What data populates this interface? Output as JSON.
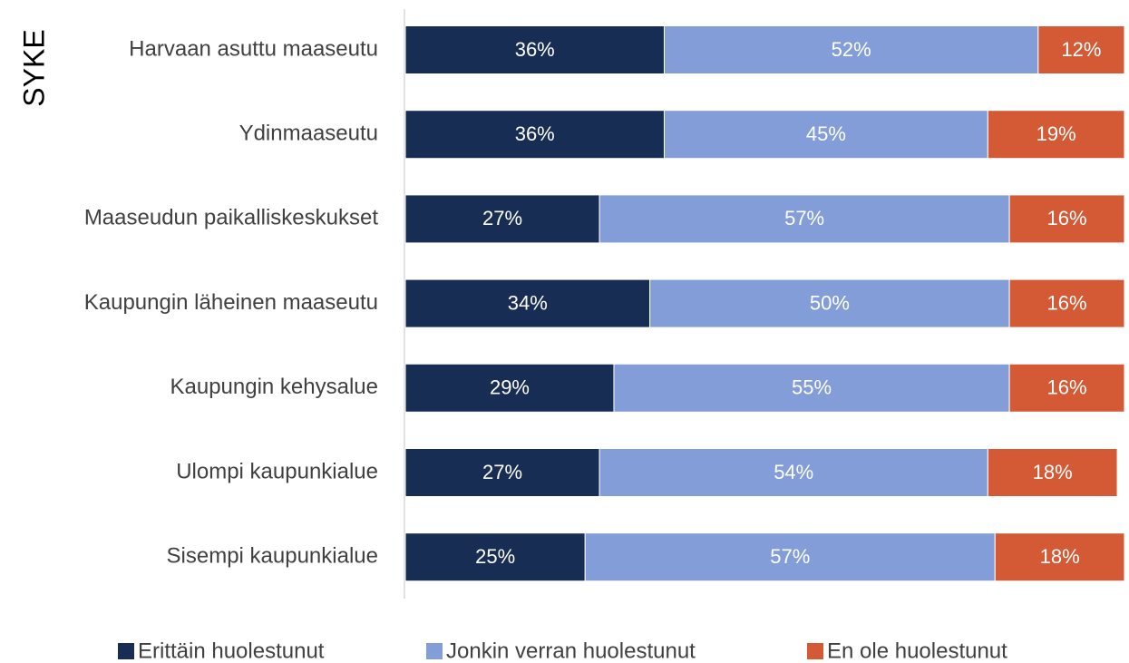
{
  "chart_data": {
    "type": "stacked_bar_horizontal",
    "title": "SYKE",
    "categories": [
      "Harvaan asuttu maaseutu",
      "Ydinmaaseutu",
      "Maaseudun paikalliskeskukset",
      "Kaupungin läheinen maaseutu",
      "Kaupungin kehysalue",
      "Ulompi kaupunkialue",
      "Sisempi kaupunkialue"
    ],
    "series": [
      {
        "name": "Erittäin huolestunut",
        "color": "#172d54",
        "values": [
          36,
          36,
          27,
          34,
          29,
          27,
          25
        ],
        "value_labels": [
          "36%",
          "36%",
          "27%",
          "34%",
          "29%",
          "27%",
          "25%"
        ]
      },
      {
        "name": "Jonkin verran huolestunut",
        "color": "#829dd8",
        "values": [
          52,
          45,
          57,
          50,
          55,
          54,
          57
        ],
        "value_labels": [
          "52%",
          "45%",
          "57%",
          "50%",
          "55%",
          "54%",
          "57%"
        ]
      },
      {
        "name": "En ole huolestunut",
        "color": "#d45a35",
        "values": [
          12,
          19,
          16,
          16,
          16,
          18,
          18
        ],
        "value_labels": [
          "12%",
          "19%",
          "16%",
          "16%",
          "16%",
          "18%",
          "18%"
        ]
      }
    ],
    "xlim": [
      0,
      100
    ],
    "legend": "bottom"
  }
}
